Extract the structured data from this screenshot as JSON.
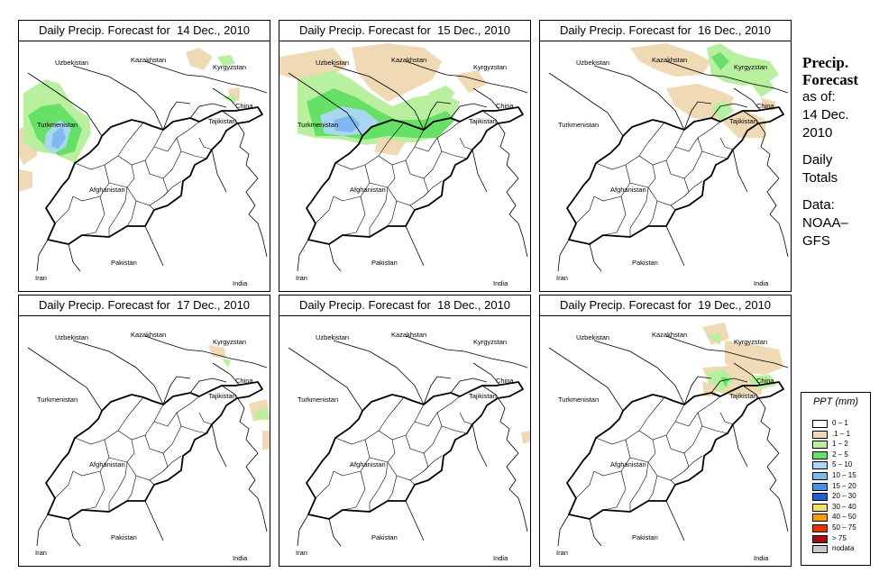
{
  "panels": [
    {
      "title": "Daily Precip. Forecast for  14 Dec., 2010"
    },
    {
      "title": "Daily Precip. Forecast for  15 Dec., 2010"
    },
    {
      "title": "Daily Precip. Forecast for  16 Dec., 2010"
    },
    {
      "title": "Daily Precip. Forecast for  17 Dec., 2010"
    },
    {
      "title": "Daily Precip. Forecast for  18 Dec., 2010"
    },
    {
      "title": "Daily Precip. Forecast for  19 Dec., 2010"
    }
  ],
  "map_labels": {
    "kazakhstan": "Kazakhstan",
    "kyrgyzstan": "Kyrgyzstan",
    "uzbekistan": "Uzbekistan",
    "china": "China",
    "turkmenistan": "Turkmenistan",
    "tajikistan": "Tajikistan",
    "afghanistan": "Afghanistan",
    "iran": "Iran",
    "pakistan": "Pakistan",
    "india": "India"
  },
  "side": {
    "title_line1": "Precip.",
    "title_line2": "Forecast",
    "asof": "as of:",
    "date_line1": "14 Dec.",
    "date_line2": "2010",
    "totals_line1": "Daily",
    "totals_line2": "Totals",
    "data_line1": "Data:",
    "data_line2": "NOAA–",
    "data_line3": "GFS"
  },
  "legend": {
    "title": "PPT (mm)",
    "items": [
      {
        "label": "0 – 1",
        "color": "#ffffff"
      },
      {
        "label": ".1 – 1",
        "color": "#f0d9b5"
      },
      {
        "label": "1 – 2",
        "color": "#b8f0a0"
      },
      {
        "label": "2 – 5",
        "color": "#66e066"
      },
      {
        "label": "5 – 10",
        "color": "#a8d8f0"
      },
      {
        "label": "10 – 15",
        "color": "#80b8f0"
      },
      {
        "label": "15 – 20",
        "color": "#4a90e8"
      },
      {
        "label": "20 – 30",
        "color": "#1f5fd0"
      },
      {
        "label": "30 – 40",
        "color": "#f5e060"
      },
      {
        "label": "40 – 50",
        "color": "#f5a000"
      },
      {
        "label": "50 – 75",
        "color": "#e83000"
      },
      {
        "label": "> 75",
        "color": "#a01010"
      },
      {
        "label": "nodata",
        "color": "#c8c8c8"
      }
    ]
  },
  "precip_colors": {
    "trace": "#f0d9b5",
    "light": "#b8f0a0",
    "moderate": "#66e066",
    "heavy": "#a8d8f0",
    "heavier": "#80b8f0"
  }
}
